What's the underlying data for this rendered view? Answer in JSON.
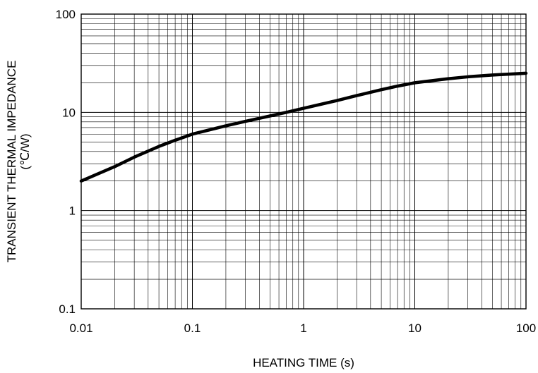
{
  "chart_data": {
    "type": "line",
    "xlabel": "HEATING TIME (s)",
    "ylabel": "TRANSIENT THERMAL IMPEDANCE",
    "ylabel_unit": "(℃/W)",
    "x_scale": "log",
    "y_scale": "log",
    "xlim": [
      0.01,
      100
    ],
    "ylim": [
      0.1,
      100
    ],
    "grid": true,
    "x_ticks": [
      {
        "value": 0.01,
        "label": "0.01"
      },
      {
        "value": 0.1,
        "label": "0.1"
      },
      {
        "value": 1,
        "label": "1"
      },
      {
        "value": 10,
        "label": "10"
      },
      {
        "value": 100,
        "label": "100"
      }
    ],
    "y_ticks": [
      {
        "value": 0.1,
        "label": "0.1"
      },
      {
        "value": 1,
        "label": "1"
      },
      {
        "value": 10,
        "label": "10"
      },
      {
        "value": 100,
        "label": "100"
      }
    ],
    "series": [
      {
        "color": "#000000",
        "points": [
          [
            0.01,
            2.0
          ],
          [
            0.02,
            2.8
          ],
          [
            0.03,
            3.5
          ],
          [
            0.05,
            4.5
          ],
          [
            0.07,
            5.2
          ],
          [
            0.1,
            6.0
          ],
          [
            0.2,
            7.3
          ],
          [
            0.3,
            8.1
          ],
          [
            0.5,
            9.2
          ],
          [
            0.7,
            10.0
          ],
          [
            1,
            11.0
          ],
          [
            2,
            13.2
          ],
          [
            3,
            14.8
          ],
          [
            5,
            17.0
          ],
          [
            7,
            18.5
          ],
          [
            10,
            20.0
          ],
          [
            20,
            22.0
          ],
          [
            30,
            23.0
          ],
          [
            50,
            24.0
          ],
          [
            100,
            25.0
          ]
        ]
      }
    ]
  }
}
